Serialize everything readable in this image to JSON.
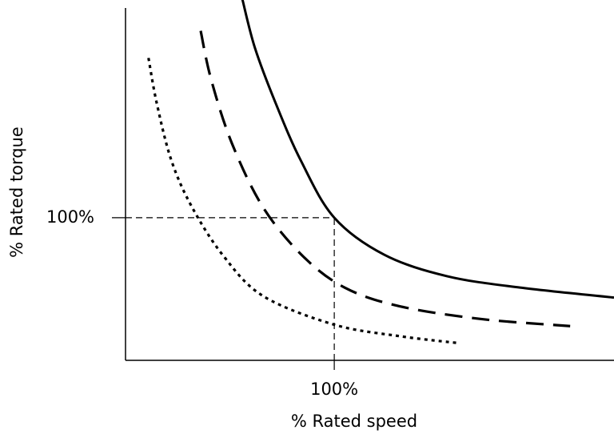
{
  "chart_data": {
    "type": "line",
    "xlabel": "% Rated speed",
    "ylabel": "% Rated torque",
    "xlim": [
      0,
      234
    ],
    "ylim": [
      0,
      247
    ],
    "xticks": [
      {
        "value": 100,
        "label": "100%"
      }
    ],
    "yticks": [
      {
        "value": 100,
        "label": "100%"
      }
    ],
    "reference_lines": true,
    "series": [
      {
        "color": "#000000",
        "style": "solid",
        "x": [
          56,
          62,
          72,
          84,
          100,
          124,
          154,
          189,
          234
        ],
        "values": [
          253,
          219,
          180,
          140,
          100,
          74,
          59,
          51,
          44
        ]
      },
      {
        "color": "#000000",
        "style": "dashed",
        "x": [
          36,
          41,
          51,
          66,
          85,
          105,
          131,
          170,
          213
        ],
        "values": [
          231,
          197,
          152,
          107,
          73,
          51,
          38,
          29,
          24
        ]
      },
      {
        "color": "#000000",
        "style": "dotted",
        "x": [
          11,
          15,
          22,
          32,
          47,
          66,
          100,
          131,
          160
        ],
        "values": [
          212,
          180,
          140,
          107,
          73,
          45,
          25,
          17,
          12
        ]
      }
    ]
  }
}
